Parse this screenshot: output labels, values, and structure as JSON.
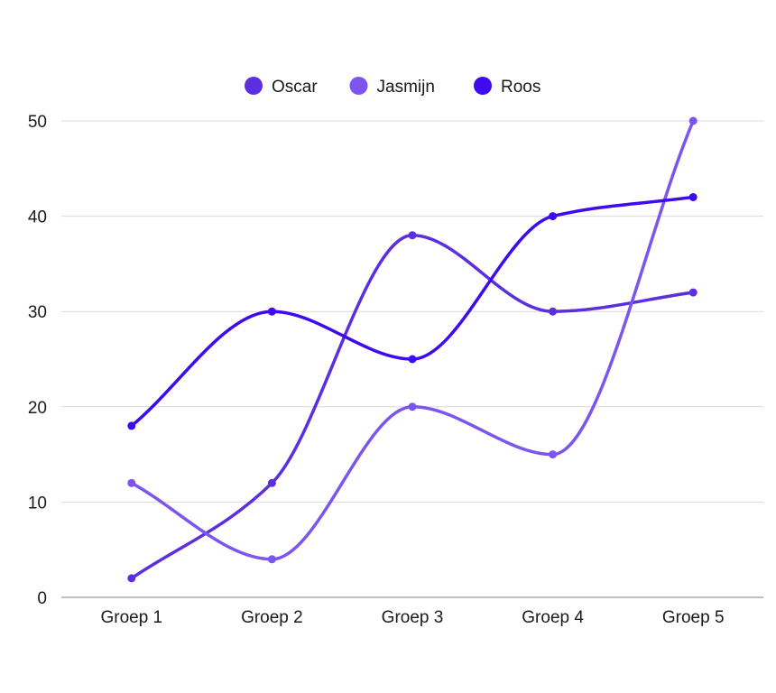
{
  "chart_data": {
    "type": "line",
    "curve": "smooth",
    "categories": [
      "Groep 1",
      "Groep 2",
      "Groep 3",
      "Groep 4",
      "Groep 5"
    ],
    "series": [
      {
        "name": "Oscar",
        "color": "#5B2FE0",
        "values": [
          2,
          12,
          38,
          30,
          32
        ]
      },
      {
        "name": "Jasmijn",
        "color": "#7B55EE",
        "values": [
          12,
          4,
          20,
          15,
          50
        ]
      },
      {
        "name": "Roos",
        "color": "#3D0BEE",
        "values": [
          18,
          30,
          25,
          40,
          42
        ]
      }
    ],
    "ylim": [
      0,
      50
    ],
    "yticks": [
      0,
      10,
      20,
      30,
      40,
      50
    ],
    "grid": "horizontal",
    "legend_position": "top-center",
    "title": "",
    "xlabel": "",
    "ylabel": ""
  }
}
